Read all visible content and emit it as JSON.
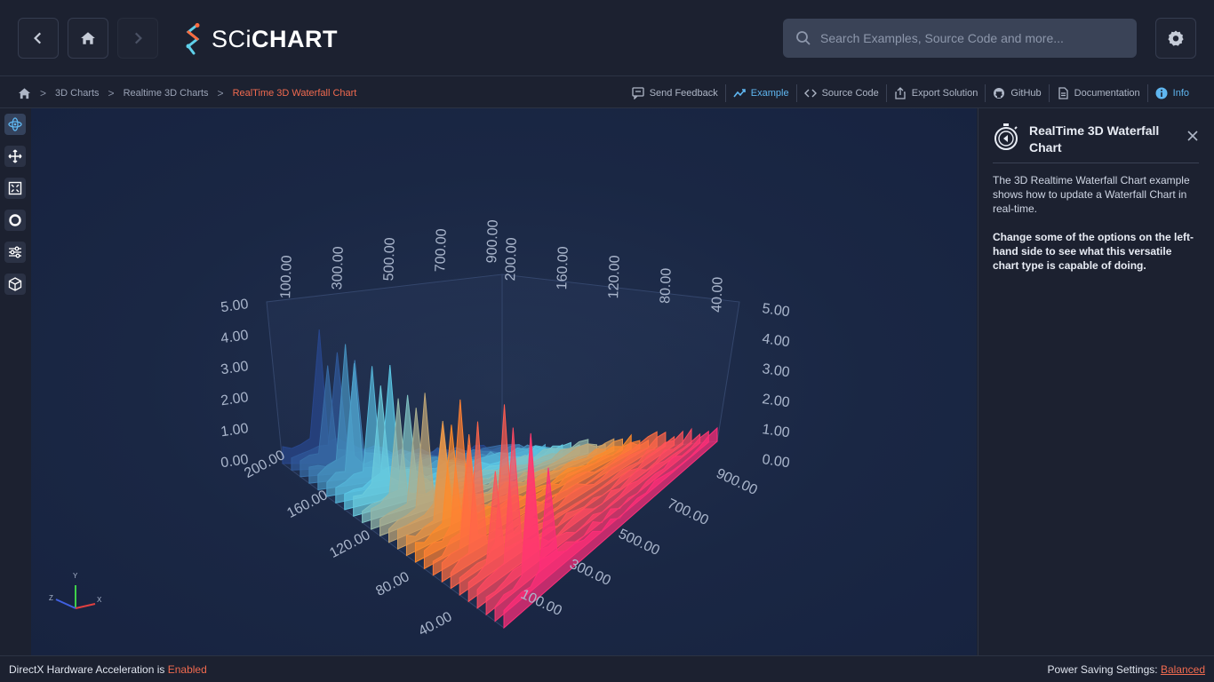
{
  "header": {
    "logo_prefix": "SCi",
    "logo_suffix": "CHART",
    "search_placeholder": "Search Examples, Source Code and more..."
  },
  "breadcrumb": {
    "items": [
      "3D Charts",
      "Realtime 3D Charts"
    ],
    "current": "RealTime 3D Waterfall Chart"
  },
  "actions": {
    "feedback": "Send Feedback",
    "example": "Example",
    "source": "Source Code",
    "export": "Export Solution",
    "github": "GitHub",
    "docs": "Documentation",
    "info": "Info"
  },
  "info_panel": {
    "title": "RealTime 3D Waterfall Chart",
    "description": "The 3D Realtime Waterfall Chart example shows how to update a Waterfall Chart in real-time.",
    "emphasis": "Change some of the options on the left-hand side to see what this versatile chart type is capable of doing."
  },
  "status": {
    "left_prefix": "DirectX Hardware Acceleration is ",
    "left_value": "Enabled",
    "right_prefix": "Power Saving Settings: ",
    "right_value": "Balanced"
  },
  "colors": {
    "accent": "#5fb6f0",
    "warning": "#f06a4f",
    "chart_cool": "#5fd0ea",
    "chart_warm": "#ff8a2a",
    "chart_hot": "#ff2d78"
  },
  "chart_data": {
    "type": "waterfall-3d",
    "y_left_ticks": [
      "5.00",
      "4.00",
      "3.00",
      "2.00",
      "1.00",
      "0.00"
    ],
    "y_right_ticks": [
      "5.00",
      "4.00",
      "3.00",
      "2.00",
      "1.00",
      "0.00"
    ],
    "z_front_ticks": [
      "200.00",
      "160.00",
      "120.00",
      "80.00",
      "40.00"
    ],
    "x_front_ticks": [
      "900.00",
      "700.00",
      "500.00",
      "300.00",
      "100.00"
    ],
    "x_back_ticks": [
      "100.00",
      "300.00",
      "500.00",
      "700.00",
      "900.00"
    ],
    "z_back_ticks": [
      "200.00",
      "160.00",
      "120.00",
      "80.00",
      "40.00"
    ],
    "axis_gizmo": [
      "Y",
      "X",
      "Z"
    ],
    "slices": 26,
    "ylim": [
      0,
      5
    ]
  }
}
